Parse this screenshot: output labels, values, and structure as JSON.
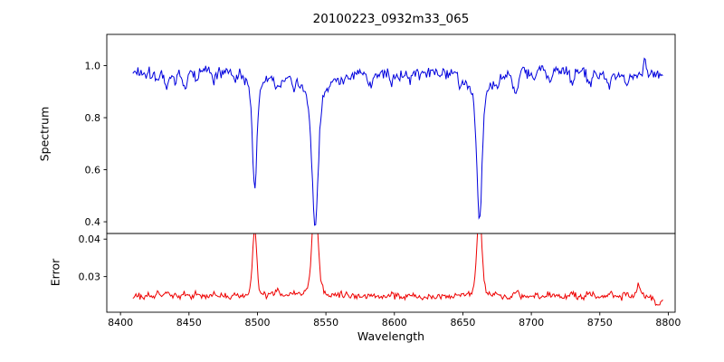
{
  "chart_data": {
    "type": "line",
    "title": "20100223_0932m33_065",
    "xlabel": "Wavelength",
    "grid": false,
    "legend": null,
    "xlim": [
      8390,
      8805
    ],
    "xticks": [
      8400,
      8450,
      8500,
      8550,
      8600,
      8650,
      8700,
      8750,
      8800
    ],
    "xtick_labels": [
      "8400",
      "8450",
      "8500",
      "8550",
      "8600",
      "8650",
      "8700",
      "8750",
      "8800"
    ],
    "x_sample_range": [
      8409,
      8796
    ],
    "x_step": 0.75,
    "panels": [
      {
        "name": "spectrum",
        "ylabel": "Spectrum",
        "line_color": "#0000dd",
        "ylim": [
          0.355,
          1.12
        ],
        "yticks": [
          0.4,
          0.6,
          0.8,
          1.0
        ],
        "ytick_labels": [
          "0.4",
          "0.6",
          "0.8",
          "1.0"
        ],
        "continuum": 0.973,
        "noise_sigma": 0.011,
        "absorption_lines": [
          {
            "center": 8498.0,
            "depth": 0.44,
            "core_width": 1.5,
            "wing_width": 4.2,
            "wing_frac": 0.26
          },
          {
            "center": 8542.1,
            "depth": 0.585,
            "core_width": 2.1,
            "wing_width": 6.0,
            "wing_frac": 0.3
          },
          {
            "center": 8662.1,
            "depth": 0.56,
            "core_width": 1.8,
            "wing_width": 5.2,
            "wing_frac": 0.28
          },
          {
            "center": 8427.5,
            "depth": 0.035,
            "core_width": 1.2,
            "wing_width": 0,
            "wing_frac": 0
          },
          {
            "center": 8433.8,
            "depth": 0.055,
            "core_width": 1.5,
            "wing_width": 0,
            "wing_frac": 0
          },
          {
            "center": 8440.0,
            "depth": 0.04,
            "core_width": 1.1,
            "wing_width": 0,
            "wing_frac": 0
          },
          {
            "center": 8447.2,
            "depth": 0.06,
            "core_width": 1.6,
            "wing_width": 0,
            "wing_frac": 0
          },
          {
            "center": 8455.5,
            "depth": 0.035,
            "core_width": 1.0,
            "wing_width": 0,
            "wing_frac": 0
          },
          {
            "center": 8468.3,
            "depth": 0.045,
            "core_width": 1.4,
            "wing_width": 0,
            "wing_frac": 0
          },
          {
            "center": 8483.0,
            "depth": 0.03,
            "core_width": 1.0,
            "wing_width": 0,
            "wing_frac": 0
          },
          {
            "center": 8514.2,
            "depth": 0.055,
            "core_width": 1.5,
            "wing_width": 0,
            "wing_frac": 0
          },
          {
            "center": 8527.0,
            "depth": 0.03,
            "core_width": 1.0,
            "wing_width": 0,
            "wing_frac": 0
          },
          {
            "center": 8560.5,
            "depth": 0.03,
            "core_width": 1.1,
            "wing_width": 0,
            "wing_frac": 0
          },
          {
            "center": 8582.3,
            "depth": 0.04,
            "core_width": 1.3,
            "wing_width": 0,
            "wing_frac": 0
          },
          {
            "center": 8598.0,
            "depth": 0.035,
            "core_width": 1.2,
            "wing_width": 0,
            "wing_frac": 0
          },
          {
            "center": 8611.5,
            "depth": 0.03,
            "core_width": 1.0,
            "wing_width": 0,
            "wing_frac": 0
          },
          {
            "center": 8648.2,
            "depth": 0.035,
            "core_width": 1.2,
            "wing_width": 0,
            "wing_frac": 0
          },
          {
            "center": 8674.6,
            "depth": 0.045,
            "core_width": 1.3,
            "wing_width": 0,
            "wing_frac": 0
          },
          {
            "center": 8688.6,
            "depth": 0.075,
            "core_width": 1.6,
            "wing_width": 0,
            "wing_frac": 0
          },
          {
            "center": 8702.0,
            "depth": 0.03,
            "core_width": 1.0,
            "wing_width": 0,
            "wing_frac": 0
          },
          {
            "center": 8713.2,
            "depth": 0.05,
            "core_width": 1.4,
            "wing_width": 0,
            "wing_frac": 0
          },
          {
            "center": 8730.0,
            "depth": 0.035,
            "core_width": 1.2,
            "wing_width": 0,
            "wing_frac": 0
          },
          {
            "center": 8742.4,
            "depth": 0.05,
            "core_width": 1.3,
            "wing_width": 0,
            "wing_frac": 0
          },
          {
            "center": 8757.0,
            "depth": 0.04,
            "core_width": 1.2,
            "wing_width": 0,
            "wing_frac": 0
          },
          {
            "center": 8769.5,
            "depth": 0.035,
            "core_width": 1.1,
            "wing_width": 0,
            "wing_frac": 0
          },
          {
            "center": 8783.0,
            "depth": -0.06,
            "core_width": 1.0,
            "wing_width": 0,
            "wing_frac": 0
          }
        ]
      },
      {
        "name": "error",
        "ylabel": "Error",
        "line_color": "#ee0000",
        "ylim": [
          0.0205,
          0.0415
        ],
        "yticks": [
          0.03,
          0.04
        ],
        "ytick_labels": [
          "0.03",
          "0.04"
        ],
        "baseline": 0.0247,
        "noise_sigma": 0.00042,
        "line_coupling": 0.02,
        "peaks": [
          {
            "center": 8498.0,
            "height": 0.0095,
            "width": 1.3
          },
          {
            "center": 8542.1,
            "height": 0.015,
            "width": 1.9
          },
          {
            "center": 8662.1,
            "height": 0.0122,
            "width": 1.5
          },
          {
            "center": 8778.5,
            "height": 0.003,
            "width": 1.3
          },
          {
            "center": 8793.0,
            "height": -0.0022,
            "width": 2.0
          }
        ]
      }
    ]
  }
}
